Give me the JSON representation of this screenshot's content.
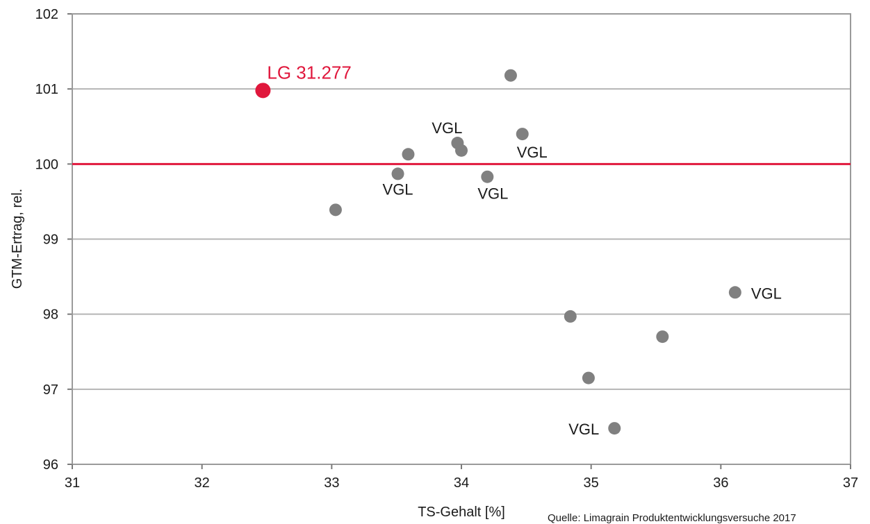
{
  "chart_data": {
    "type": "scatter",
    "xlabel": "TS-Gehalt [%]",
    "ylabel": "GTM-Ertrag, rel.",
    "xlim": [
      31,
      37
    ],
    "ylim": [
      96,
      102
    ],
    "x_ticks": [
      "31",
      "32",
      "33",
      "34",
      "35",
      "36",
      "37"
    ],
    "y_ticks": [
      "96",
      "97",
      "98",
      "99",
      "100",
      "101",
      "102"
    ],
    "grid": "horizontal",
    "reference_line": {
      "y": 100,
      "color": "#e0173c"
    },
    "highlight": {
      "label": "LG 31.277",
      "x": 32.47,
      "y": 100.98,
      "color": "#e0173c"
    },
    "point_color": "#808080",
    "points": [
      {
        "x": 33.03,
        "y": 99.39,
        "label": ""
      },
      {
        "x": 33.51,
        "y": 99.87,
        "label": "VGL"
      },
      {
        "x": 33.59,
        "y": 100.13,
        "label": ""
      },
      {
        "x": 33.97,
        "y": 100.28,
        "label": "VGL"
      },
      {
        "x": 34.0,
        "y": 100.18,
        "label": ""
      },
      {
        "x": 34.2,
        "y": 99.83,
        "label": "VGL"
      },
      {
        "x": 34.38,
        "y": 101.18,
        "label": ""
      },
      {
        "x": 34.47,
        "y": 100.4,
        "label": "VGL"
      },
      {
        "x": 34.84,
        "y": 97.97,
        "label": ""
      },
      {
        "x": 34.98,
        "y": 97.15,
        "label": ""
      },
      {
        "x": 35.18,
        "y": 96.48,
        "label": "VGL"
      },
      {
        "x": 35.55,
        "y": 97.7,
        "label": ""
      },
      {
        "x": 36.11,
        "y": 98.29,
        "label": "VGL"
      }
    ]
  },
  "footer": {
    "source": "Quelle: Limagrain Produktentwicklungsversuche 2017"
  }
}
